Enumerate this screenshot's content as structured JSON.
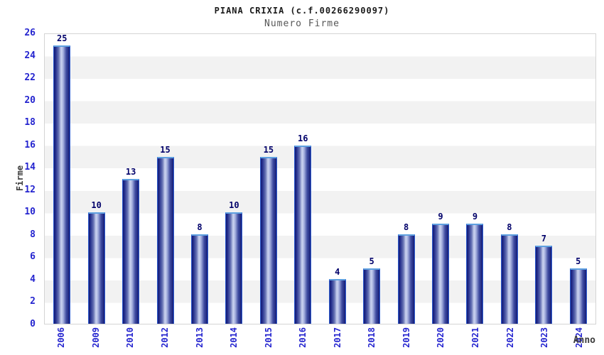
{
  "chart_data": {
    "type": "bar",
    "title": "PIANA CRIXIA (c.f.00266290097)",
    "subtitle": "Numero Firme",
    "xlabel": "Anno",
    "ylabel": "Firme",
    "categories": [
      "2006",
      "2009",
      "2010",
      "2012",
      "2013",
      "2014",
      "2015",
      "2016",
      "2017",
      "2018",
      "2019",
      "2020",
      "2021",
      "2022",
      "2023",
      "2024"
    ],
    "values": [
      25,
      10,
      13,
      15,
      8,
      10,
      15,
      16,
      4,
      5,
      8,
      9,
      9,
      8,
      7,
      5
    ],
    "ylim": [
      0,
      26
    ],
    "yticks": [
      0,
      2,
      4,
      6,
      8,
      10,
      12,
      14,
      16,
      18,
      20,
      22,
      24,
      26
    ],
    "grid": "horizontal-alternating-bands",
    "legend": "none",
    "colors": {
      "bar_edge": "#131b76",
      "bar_highlight": "#ccd4f0",
      "bar_border": "#2e5ccf",
      "bar_top_cap": "#5ea0e0",
      "tick_label": "#2424cf",
      "value_label": "#00006a",
      "band_gray": "#f2f2f2",
      "band_white": "#ffffff",
      "plot_border": "#d4d4d4",
      "axis_title": "#3c3c3c",
      "title": "#1a1a1a",
      "subtitle": "#565656",
      "background": "#ffffff"
    }
  }
}
